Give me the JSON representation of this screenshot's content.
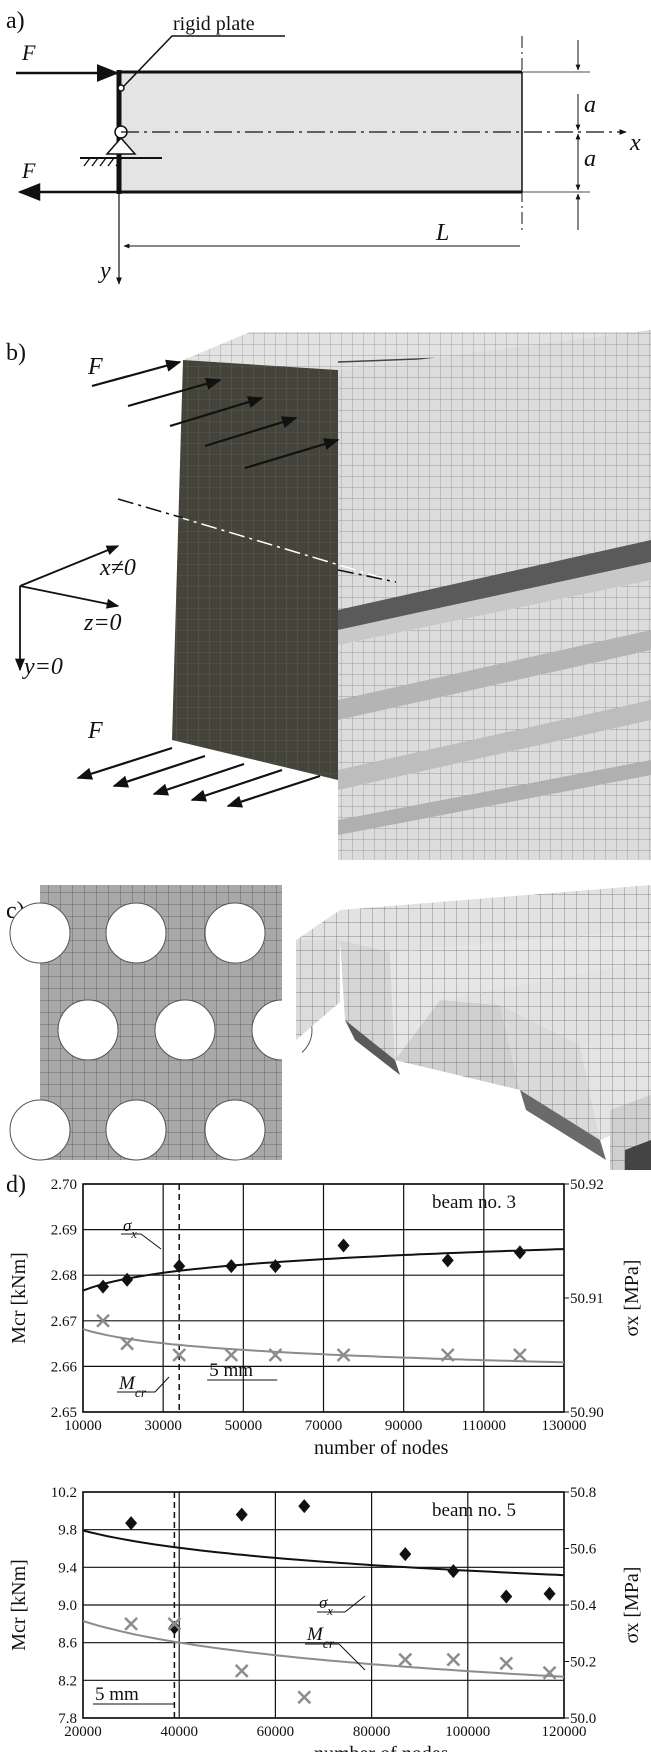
{
  "panel_a": {
    "label": "a)",
    "rigid_plate": "rigid plate",
    "force": "F",
    "dim_a": "a",
    "dim_L": "L",
    "axis_x": "x",
    "axis_y": "y"
  },
  "panel_b": {
    "label": "b)",
    "force": "F",
    "cond_x": "x≠0",
    "cond_z": "z=0",
    "cond_y": "y=0"
  },
  "panel_c": {
    "label": "c)"
  },
  "panel_d": {
    "label": "d)"
  },
  "colors": {
    "plate": "#44443a",
    "mesh": "#dcdcdc",
    "series_sigma": "#111111",
    "series_mcr": "#8c8c8c"
  },
  "chart_data": [
    {
      "type": "scatter",
      "annotation": "beam no. 3",
      "xlabel": "number of nodes",
      "ylabel_left": "Mcr [kNm]",
      "ylabel_right": "σx [MPa]",
      "xlim": [
        10000,
        130000
      ],
      "ylim_left": [
        2.65,
        2.7
      ],
      "ylim_right": [
        50.9,
        50.92
      ],
      "x_ticks": [
        "10000",
        "30000",
        "50000",
        "70000",
        "90000",
        "110000",
        "130000"
      ],
      "y_ticks_left": [
        "2.65",
        "2.66",
        "2.67",
        "2.68",
        "2.69",
        "2.70"
      ],
      "y_ticks_right": [
        "50.90",
        "50.91",
        "50.92"
      ],
      "reference_line": {
        "x": 34000,
        "label": "5 mm"
      },
      "series": [
        {
          "name": "σx",
          "axis": "right",
          "marker": "diamond",
          "x": [
            15000,
            21000,
            34000,
            47000,
            58000,
            75000,
            101000,
            119000
          ],
          "y": [
            50.911,
            50.9116,
            50.9128,
            50.9128,
            50.9128,
            50.9146,
            50.9133,
            50.914
          ]
        },
        {
          "name": "Mcr",
          "axis": "left",
          "marker": "cross",
          "x": [
            15000,
            21000,
            34000,
            47000,
            58000,
            75000,
            101000,
            119000
          ],
          "y": [
            2.67,
            2.665,
            2.6625,
            2.6625,
            2.6625,
            2.6625,
            2.6625,
            2.6625
          ]
        }
      ],
      "labels": {
        "sigma": "σ",
        "sigma_sub": "x",
        "mcr": "M",
        "mcr_sub": "cr"
      }
    },
    {
      "type": "scatter",
      "annotation": "beam no. 5",
      "xlabel": "number of nodes",
      "ylabel_left": "Mcr [kNm]",
      "ylabel_right": "σx [MPa]",
      "xlim": [
        20000,
        120000
      ],
      "ylim_left": [
        7.8,
        10.2
      ],
      "ylim_right": [
        50.0,
        50.8
      ],
      "x_ticks": [
        "20000",
        "40000",
        "60000",
        "80000",
        "100000",
        "120000"
      ],
      "y_ticks_left": [
        "7.8",
        "8.2",
        "8.6",
        "9.0",
        "9.4",
        "9.8",
        "10.2"
      ],
      "y_ticks_right": [
        "50.0",
        "50.2",
        "50.4",
        "50.6",
        "50.8"
      ],
      "reference_line": {
        "x": 39000,
        "label": "5 mm"
      },
      "series": [
        {
          "name": "σx",
          "axis": "right",
          "marker": "diamond",
          "x": [
            30000,
            39000,
            53000,
            66000,
            87000,
            97000,
            108000,
            117000
          ],
          "y": [
            50.69,
            50.32,
            50.72,
            50.75,
            50.58,
            50.52,
            50.43,
            50.44
          ]
        },
        {
          "name": "Mcr",
          "axis": "left",
          "marker": "cross",
          "x": [
            30000,
            39000,
            53000,
            66000,
            87000,
            97000,
            108000,
            117000
          ],
          "y": [
            8.8,
            8.8,
            8.3,
            8.02,
            8.42,
            8.42,
            8.38,
            8.28
          ]
        }
      ],
      "labels": {
        "sigma": "σ",
        "sigma_sub": "x",
        "mcr": "M",
        "mcr_sub": "cr"
      }
    }
  ]
}
